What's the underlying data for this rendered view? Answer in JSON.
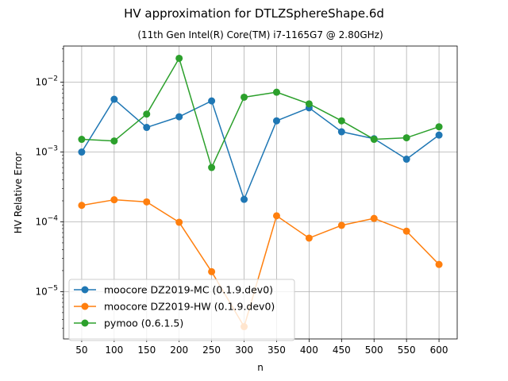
{
  "chart_data": {
    "type": "line",
    "title": "HV approximation for DTLZSphereShape.6d",
    "subtitle": "(11th Gen Intel(R) Core(TM) i7-1165G7 @ 2.80GHz)",
    "xlabel": "n",
    "ylabel": "HV Relative Error",
    "yscale": "log",
    "grid": true,
    "legend_position": "lower-left",
    "x": [
      50,
      100,
      150,
      200,
      250,
      300,
      350,
      400,
      450,
      500,
      550,
      600
    ],
    "xlim": [
      22,
      628
    ],
    "ylim": [
      2.1e-06,
      0.033
    ],
    "y_ticks": [
      {
        "value": 1e-05,
        "mantissa": "10",
        "exp": "−5"
      },
      {
        "value": 0.0001,
        "mantissa": "10",
        "exp": "−4"
      },
      {
        "value": 0.001,
        "mantissa": "10",
        "exp": "−3"
      },
      {
        "value": 0.01,
        "mantissa": "10",
        "exp": "−2"
      }
    ],
    "series": [
      {
        "name": "moocore DZ2019-MC (0.1.9.dev0)",
        "color": "#1f77b4",
        "values": [
          0.001,
          0.0057,
          0.00225,
          0.0032,
          0.0054,
          0.00021,
          0.0028,
          0.0043,
          0.00195,
          0.00155,
          0.00079,
          0.00175
        ]
      },
      {
        "name": "moocore DZ2019-HW (0.1.9.dev0)",
        "color": "#ff7f0e",
        "values": [
          0.000172,
          0.000207,
          0.000193,
          9.85e-05,
          1.93e-05,
          3.15e-06,
          0.000122,
          5.85e-05,
          8.9e-05,
          0.000112,
          7.35e-05,
          2.45e-05
        ]
      },
      {
        "name": "pymoo (0.6.1.5)",
        "color": "#2ca02c",
        "values": [
          0.00152,
          0.00144,
          0.0035,
          0.022,
          0.0006,
          0.0061,
          0.0072,
          0.0049,
          0.0028,
          0.00152,
          0.0016,
          0.0023
        ]
      }
    ]
  }
}
